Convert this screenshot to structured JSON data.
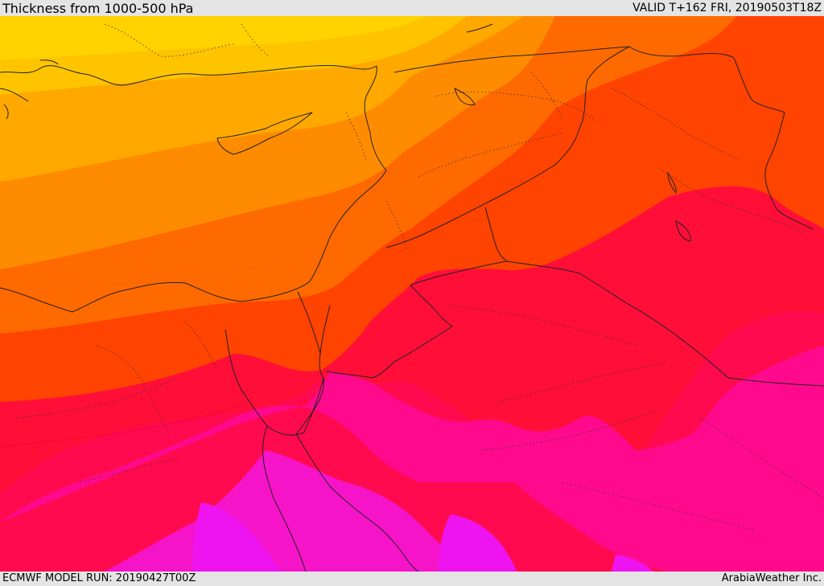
{
  "header": {
    "title": "Thickness from 1000-500 hPa",
    "valid": "VALID T+162 FRI, 20190503T18Z"
  },
  "footer": {
    "model_run": "ECMWF MODEL RUN: 20190427T00Z",
    "credit": "ArabiaWeather Inc."
  },
  "map": {
    "field": "1000-500 hPa thickness",
    "colors": {
      "yellow": "#ffd200",
      "gold": "#ffc400",
      "amber": "#ffa800",
      "orange": "#ff8c00",
      "dark_orange": "#ff6a00",
      "red_orange": "#ff4300",
      "red": "#ff0f38",
      "crimson": "#ff0a4e",
      "pink": "#ff0a8c",
      "magenta": "#f514c8",
      "violet": "#ee14f0"
    }
  }
}
